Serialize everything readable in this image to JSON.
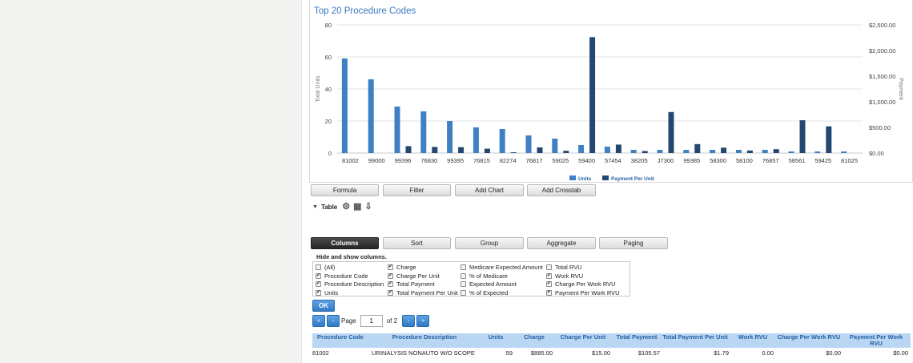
{
  "chart": {
    "title": "Top 20 Procedure Codes",
    "left_axis_label": "Total Units",
    "right_axis_label": "Payment",
    "left_ticks": [
      "0",
      "20",
      "40",
      "60",
      "80"
    ],
    "right_ticks": [
      "$0.00",
      "$500.00",
      "$1,000.00",
      "$1,500.00",
      "$2,000.00",
      "$2,500.00"
    ]
  },
  "chart_data": {
    "type": "bar",
    "categories": [
      "81002",
      "99000",
      "99396",
      "76830",
      "99395",
      "76815",
      "82274",
      "76817",
      "59025",
      "59400",
      "57454",
      "38205",
      "J7300",
      "99385",
      "58300",
      "58100",
      "76857",
      "58561",
      "59425",
      "81025"
    ],
    "series": [
      {
        "name": "Units",
        "axis": "left",
        "color": "#3f7fc4",
        "values": [
          59,
          46,
          29,
          26,
          20,
          16,
          15,
          11,
          9,
          5,
          4,
          2,
          2,
          2,
          2,
          2,
          2,
          1,
          1,
          1
        ]
      },
      {
        "name": "Payment Per Unit",
        "axis": "right",
        "color": "#24476f",
        "values": [
          0,
          0,
          135,
          120,
          115,
          85,
          15,
          110,
          45,
          2260,
          165,
          40,
          800,
          175,
          105,
          50,
          75,
          640,
          520,
          0
        ]
      }
    ],
    "ylim_left": [
      0,
      80
    ],
    "ylim_right": [
      0,
      2500
    ],
    "grid": true,
    "legend": "bottom"
  },
  "toolbar": {
    "formula": "Formula",
    "filter": "Filter",
    "add_chart": "Add Chart",
    "add_crosstab": "Add Crosstab"
  },
  "table_section": {
    "label": "Table"
  },
  "tabs": {
    "columns": "Columns",
    "sort": "Sort",
    "group": "Group",
    "aggregate": "Aggregate",
    "paging": "Paging"
  },
  "hide_show_label": "Hide and show columns.",
  "column_options": [
    {
      "label": "(All)",
      "checked": false
    },
    {
      "label": "Procedure Code",
      "checked": true
    },
    {
      "label": "Procedure Description",
      "checked": true
    },
    {
      "label": "Units",
      "checked": true
    },
    {
      "label": "Charge",
      "checked": true
    },
    {
      "label": "Charge Per Unit",
      "checked": true
    },
    {
      "label": "Total Payment",
      "checked": true
    },
    {
      "label": "Total Payment Per Unit",
      "checked": true
    },
    {
      "label": "Medicare Expected Amount",
      "checked": false
    },
    {
      "label": "% of Medicare",
      "checked": false
    },
    {
      "label": "Expected Amount",
      "checked": false
    },
    {
      "label": "% of Expected",
      "checked": false
    },
    {
      "label": "Total RVU",
      "checked": false
    },
    {
      "label": "Work RVU",
      "checked": true
    },
    {
      "label": "Charge Per Work RVU",
      "checked": true
    },
    {
      "label": "Payment Per Work RVU",
      "checked": true
    }
  ],
  "ok_label": "OK",
  "pager": {
    "page_label": "Page",
    "page_value": "1",
    "of_label": "of 2"
  },
  "grid": {
    "headers": [
      "Procedure Code",
      "Procedure Description",
      "Units",
      "Charge",
      "Charge Per Unit",
      "Total Payment",
      "Total Payment Per Unit",
      "Work RVU",
      "Charge Per Work RVU",
      "Payment Per Work RVU"
    ],
    "rows": [
      [
        "81002",
        "URINALYSIS NONAUTO W/O SCOPE",
        "59",
        "$885.00",
        "$15.00",
        "$105.57",
        "$1.79",
        "0.00",
        "$0.00",
        "$0.00"
      ]
    ]
  }
}
